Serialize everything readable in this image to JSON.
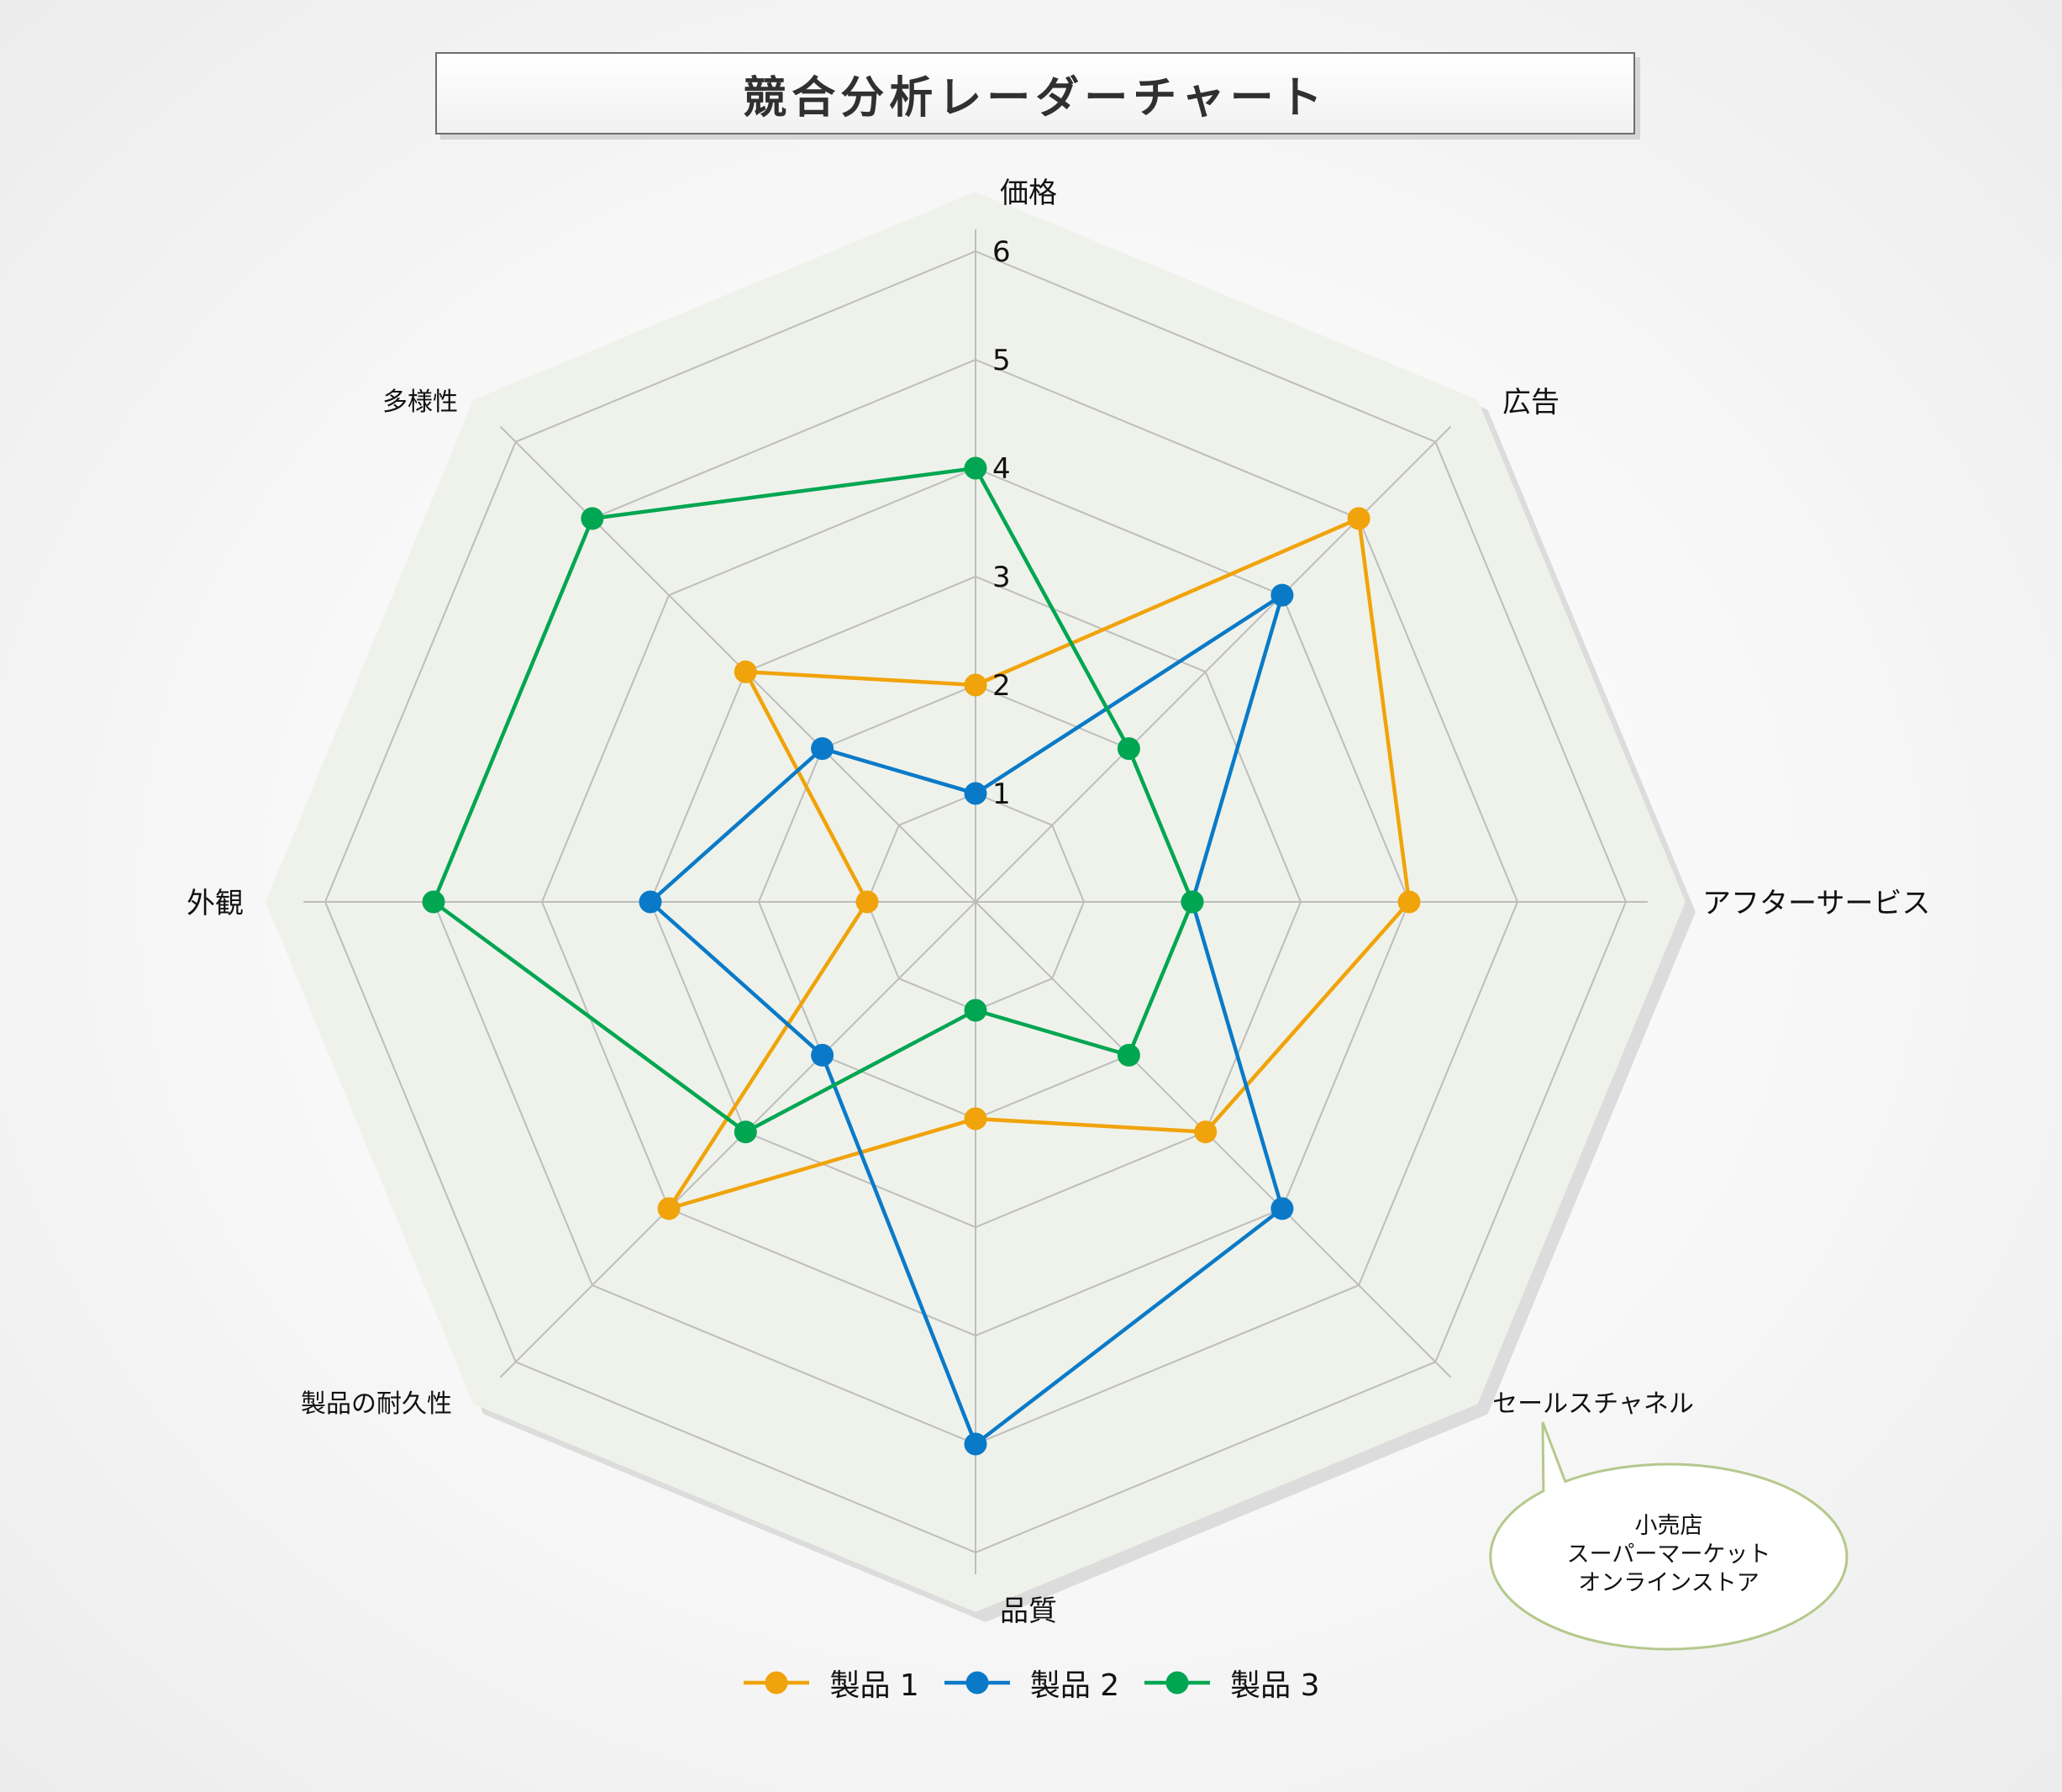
{
  "chart_data": {
    "type": "radar",
    "title": "競合分析レーダーチャート",
    "axes": [
      "価格",
      "広告",
      "アフターサービス",
      "セールスチャネル",
      "品質",
      "製品の耐久性",
      "外観",
      "多様性"
    ],
    "r_ticks": [
      1,
      2,
      3,
      4,
      5,
      6
    ],
    "r_range": [
      0,
      6
    ],
    "grid": true,
    "legend_position": "bottom",
    "series": [
      {
        "name": "製品 1",
        "color": "#F0A30A",
        "values": [
          2,
          5,
          4,
          3,
          2,
          4,
          1,
          3
        ]
      },
      {
        "name": "製品 2",
        "color": "#0A7AC8",
        "values": [
          1,
          4,
          2,
          4,
          5,
          2,
          3,
          2
        ]
      },
      {
        "name": "製品 3",
        "color": "#00A651",
        "values": [
          4,
          2,
          2,
          2,
          1,
          3,
          5,
          5
        ]
      }
    ],
    "annotation": {
      "target_axis": "セールスチャネル",
      "lines": [
        "小売店",
        "スーパーマーケット",
        "オンラインストア"
      ]
    }
  },
  "colors": {
    "plot_background": "#EFF2EA",
    "grid": "#BDBDBD",
    "callout_border": "#B5C88C"
  }
}
